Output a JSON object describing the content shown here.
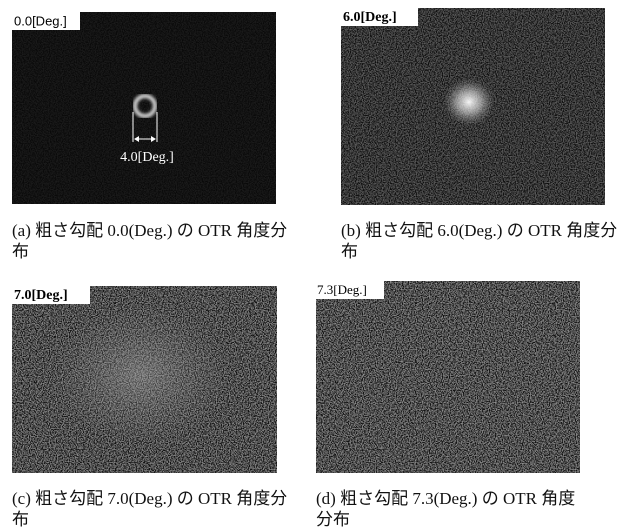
{
  "panels": [
    {
      "label": "0.0[Deg.]",
      "annotation": "4.0[Deg.]",
      "caption": "(a) 粗さ勾配 0.0(Deg.) の OTR 角度分布"
    },
    {
      "label": "6.0[Deg.]",
      "caption": "(b) 粗さ勾配 6.0(Deg.) の OTR 角度分布"
    },
    {
      "label": "7.0[Deg.]",
      "caption": "(c) 粗さ勾配 7.0(Deg.) の OTR 角度分布"
    },
    {
      "label": "7.3[Deg.]",
      "caption": "(d) 粗さ勾配 7.3(Deg.) の OTR 角度分布"
    }
  ]
}
